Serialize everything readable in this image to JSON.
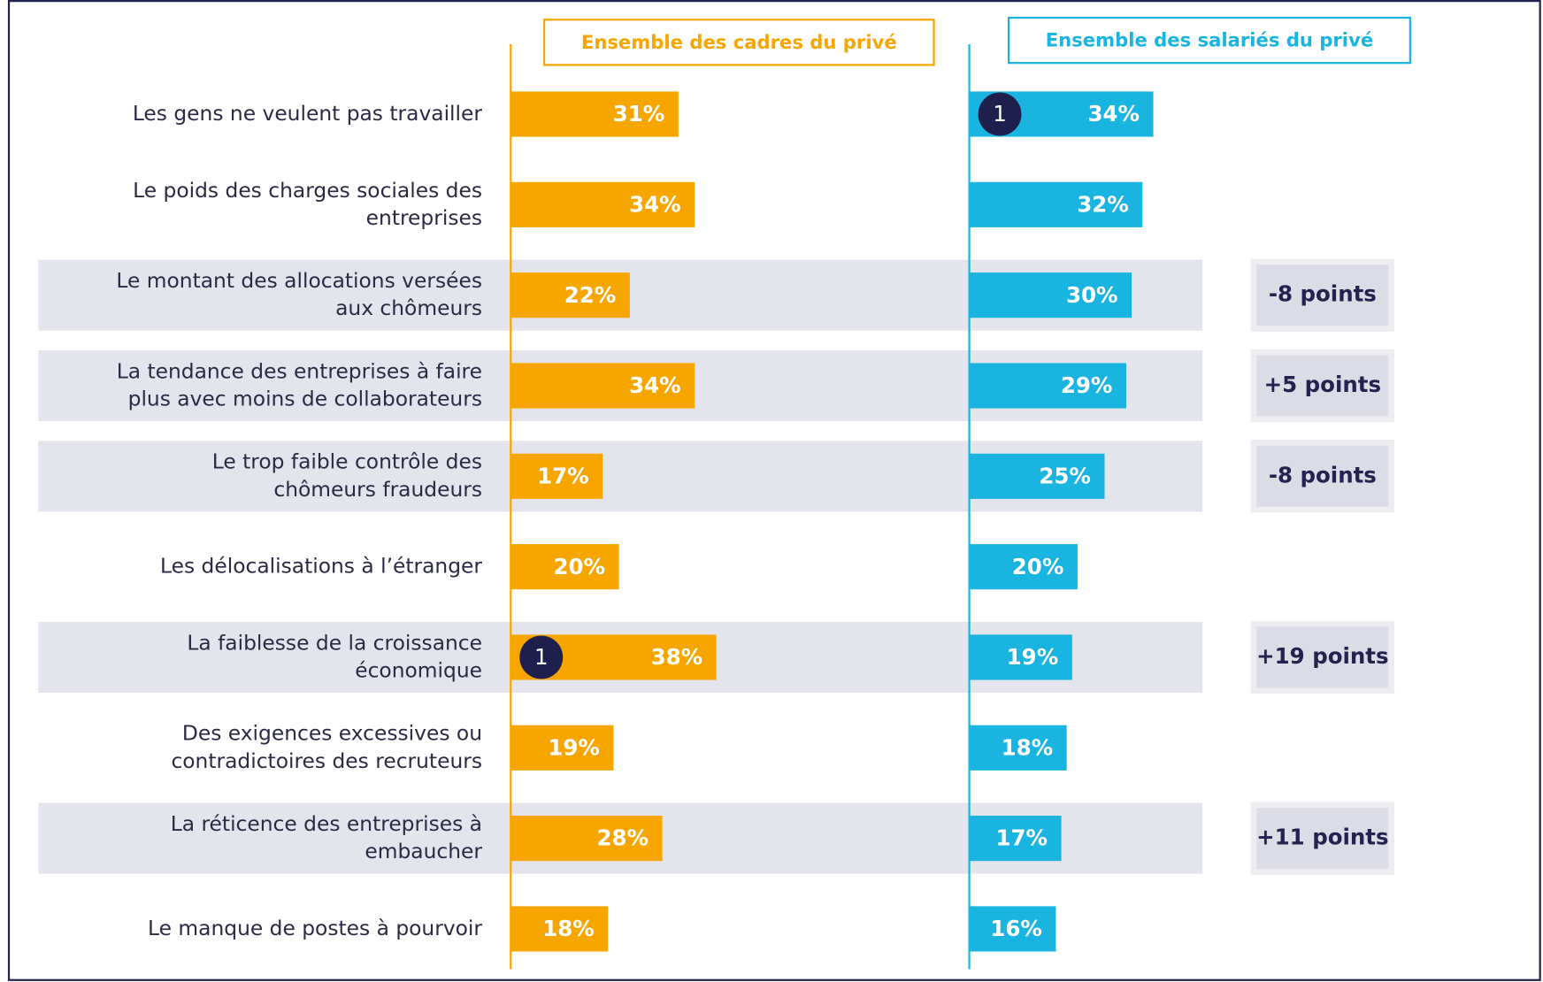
{
  "chart_data": {
    "type": "bar",
    "categories": [
      "Les gens ne veulent pas travailler",
      "Le poids des charges sociales des\nentreprises",
      "Le montant des allocations versées\naux chômeurs",
      "La tendance des entreprises à faire\nplus avec moins de collaborateurs",
      "Le trop faible contrôle des\nchômeurs fraudeurs",
      "Les délocalisations à l’étranger",
      "La faiblesse de la croissance\néconomique",
      "Des exigences excessives ou\ncontradictoires des recruteurs",
      "La réticence des entreprises à\nembaucher",
      "Le manque de postes à pourvoir"
    ],
    "series": [
      {
        "name": "Ensemble des cadres du privé",
        "color": "#f7a600",
        "values": [
          31,
          34,
          22,
          34,
          17,
          20,
          38,
          19,
          28,
          18
        ],
        "value_labels": [
          "31%",
          "34%",
          "22%",
          "34%",
          "17%",
          "20%",
          "38%",
          "19%",
          "28%",
          "18%"
        ],
        "badges": [
          null,
          null,
          null,
          null,
          null,
          null,
          "1",
          null,
          null,
          null
        ]
      },
      {
        "name": "Ensemble des salariés du privé",
        "color": "#1ab4e0",
        "values": [
          34,
          32,
          30,
          29,
          25,
          20,
          19,
          18,
          17,
          16
        ],
        "value_labels": [
          "34%",
          "32%",
          "30%",
          "29%",
          "25%",
          "20%",
          "19%",
          "18%",
          "17%",
          "16%"
        ],
        "badges": [
          "1",
          null,
          null,
          null,
          null,
          null,
          null,
          null,
          null,
          null
        ]
      }
    ],
    "differences": [
      null,
      null,
      "-8 points",
      "+5 points",
      "-8 points",
      null,
      "+19 points",
      null,
      "+11 points",
      null
    ]
  }
}
